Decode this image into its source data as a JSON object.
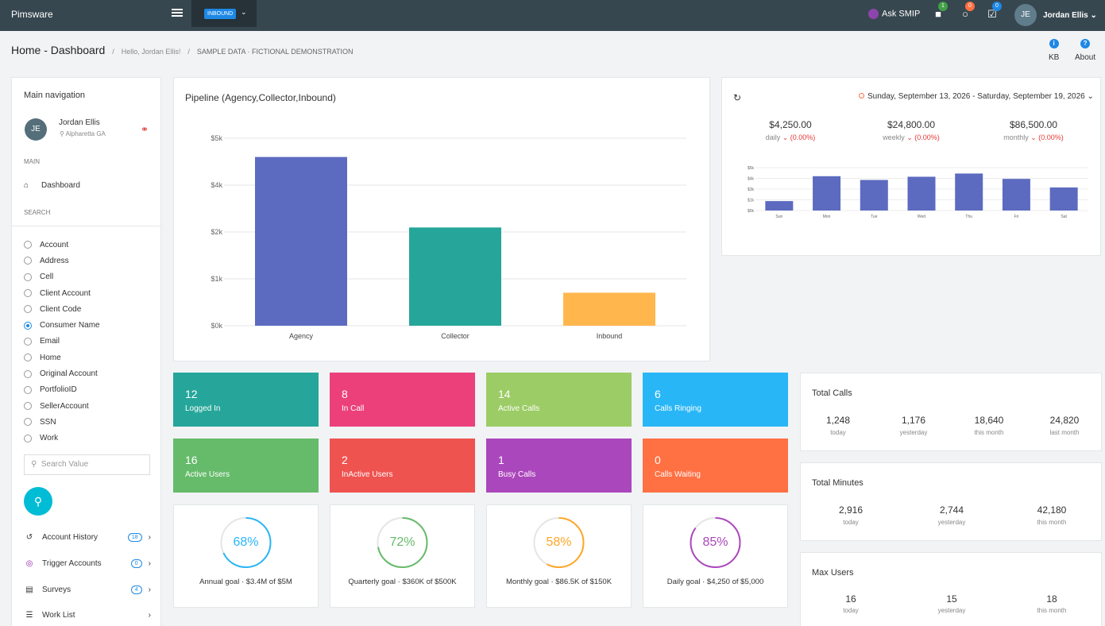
{
  "topbar": {
    "brand": "Pimsware",
    "campaign": "INBOUND",
    "ask": "Ask SMIP",
    "badges": [
      "1",
      "0",
      "0"
    ],
    "user_initials": "JE",
    "user_name": "Jordan Ellis"
  },
  "crumbs": {
    "title": "Home - Dashboard",
    "hello": "Hello, Jordan Ellis!",
    "sample": "SAMPLE DATA · FICTIONAL DEMONSTRATION"
  },
  "help": {
    "kb": "KB",
    "about": "About"
  },
  "sidebar": {
    "heading": "Main navigation",
    "initials": "JE",
    "name": "Jordan Ellis",
    "location": "Alpharetta GA",
    "main_label": "MAIN",
    "dashboard": "Dashboard",
    "search_label": "SEARCH",
    "search_options": [
      "Account",
      "Address",
      "Cell",
      "Client Account",
      "Client Code",
      "Consumer Name",
      "Email",
      "Home",
      "Original Account",
      "PortfolioID",
      "SellerAccount",
      "SSN",
      "Work"
    ],
    "selected_option": "Consumer Name",
    "search_placeholder": "Search Value",
    "menu": [
      {
        "label": "Account History",
        "count": "18"
      },
      {
        "label": "Trigger Accounts",
        "count": "0"
      },
      {
        "label": "Surveys",
        "count": "4"
      },
      {
        "label": "Work List",
        "count": ""
      }
    ]
  },
  "pipeline": {
    "title": "Pipeline (Agency,Collector,Inbound)"
  },
  "chart_data": [
    {
      "type": "bar",
      "title": "Pipeline (Agency,Collector,Inbound)",
      "categories": [
        "Agency",
        "Collector",
        "Inbound"
      ],
      "values": [
        4500,
        2620,
        880
      ],
      "colors": [
        "#5c6bc0",
        "#26a69a",
        "#ffb74d"
      ],
      "yticks": [
        "$0k",
        "$1k",
        "$2k",
        "$4k",
        "$5k"
      ],
      "ylim": [
        0,
        5000
      ],
      "grid": true
    },
    {
      "type": "bar",
      "categories": [
        "Sun",
        "Mon",
        "Tue",
        "Wed",
        "Thu",
        "Fri",
        "Sat"
      ],
      "values": [
        880,
        3200,
        2850,
        3150,
        3450,
        2950,
        2150
      ],
      "color": "#5c6bc0",
      "yticks": [
        "$0k",
        "$1k",
        "$3k",
        "$4k",
        "$5k"
      ],
      "ylim": [
        0,
        4000
      ],
      "grid": true
    }
  ],
  "tiles": [
    {
      "num": "12",
      "label": "Logged In",
      "color": "#26a69a"
    },
    {
      "num": "8",
      "label": "In Call",
      "color": "#ec407a"
    },
    {
      "num": "14",
      "label": "Active Calls",
      "color": "#9ccc65"
    },
    {
      "num": "6",
      "label": "Calls Ringing",
      "color": "#29b6f6"
    },
    {
      "num": "16",
      "label": "Active Users",
      "color": "#66bb6a"
    },
    {
      "num": "2",
      "label": "InActive Users",
      "color": "#ef5350"
    },
    {
      "num": "1",
      "label": "Busy Calls",
      "color": "#ab47bc"
    },
    {
      "num": "0",
      "label": "Calls Waiting",
      "color": "#ff7043"
    }
  ],
  "gauges": [
    {
      "pct": "68%",
      "value": 0.68,
      "label": "Annual goal · $3.4M of $5M",
      "color": "#29b6f6"
    },
    {
      "pct": "72%",
      "value": 0.72,
      "label": "Quarterly goal · $360K of $500K",
      "color": "#66bb6a"
    },
    {
      "pct": "58%",
      "value": 0.58,
      "label": "Monthly goal · $86.5K of $150K",
      "color": "#ffa726"
    },
    {
      "pct": "85%",
      "value": 0.85,
      "label": "Daily goal · $4,250 of $5,000",
      "color": "#ab47bc"
    }
  ],
  "week": {
    "range": "Sunday, September 13, 2026 - Saturday, September 19, 2026",
    "stats": [
      {
        "amount": "$4,250.00",
        "period": "daily",
        "change": "(0.00%)"
      },
      {
        "amount": "$24,800.00",
        "period": "weekly",
        "change": "(0.00%)"
      },
      {
        "amount": "$86,500.00",
        "period": "monthly",
        "change": "(0.00%)"
      }
    ]
  },
  "total_calls": {
    "title": "Total Calls",
    "items": [
      {
        "value": "1,248",
        "sub": "today"
      },
      {
        "value": "1,176",
        "sub": "yesterday"
      },
      {
        "value": "18,640",
        "sub": "this month"
      },
      {
        "value": "24,820",
        "sub": "last month"
      }
    ]
  },
  "total_minutes": {
    "title": "Total Minutes",
    "items": [
      {
        "value": "2,916",
        "sub": "today"
      },
      {
        "value": "2,744",
        "sub": "yesterday"
      },
      {
        "value": "42,180",
        "sub": "this month"
      }
    ]
  },
  "max_users": {
    "title": "Max Users",
    "items": [
      {
        "value": "16",
        "sub": "today"
      },
      {
        "value": "15",
        "sub": "yesterday"
      },
      {
        "value": "18",
        "sub": "this month"
      }
    ]
  }
}
